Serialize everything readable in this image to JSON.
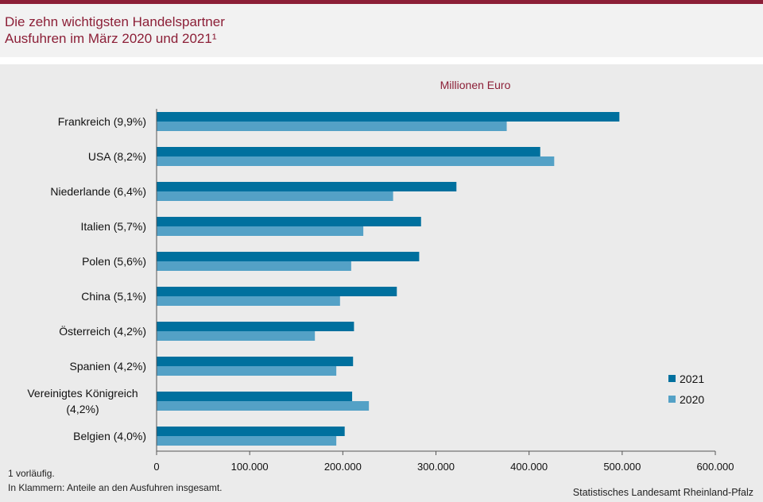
{
  "header": {
    "title_line1": "Die zehn wichtigsten Handelspartner",
    "title_line2": "Ausfuhren im März 2020 und 2021¹"
  },
  "colors": {
    "accent": "#8c1f37",
    "series_2021": "#00709e",
    "series_2020": "#54a1c6",
    "background": "#ebebeb"
  },
  "chart_data": {
    "type": "bar",
    "orientation": "horizontal",
    "unit_label": "Millionen Euro",
    "categories": [
      [
        "Frankreich (9,9%)"
      ],
      [
        "USA (8,2%)"
      ],
      [
        "Niederlande (6,4%)"
      ],
      [
        "Italien (5,7%)"
      ],
      [
        "Polen (5,6%)"
      ],
      [
        "China (5,1%)"
      ],
      [
        "Österreich (4,2%)"
      ],
      [
        "Spanien (4,2%)"
      ],
      [
        "Vereinigtes Königreich",
        "(4,2%)"
      ],
      [
        "Belgien (4,0%)"
      ]
    ],
    "series": [
      {
        "name": "2021",
        "values": [
          497000,
          412000,
          322000,
          284000,
          282000,
          258000,
          212000,
          211000,
          210000,
          202000
        ]
      },
      {
        "name": "2020",
        "values": [
          376000,
          427000,
          254000,
          222000,
          209000,
          197000,
          170000,
          193000,
          228000,
          193000
        ]
      }
    ],
    "xlim": [
      0,
      600000
    ],
    "x_ticks": [
      0,
      100000,
      200000,
      300000,
      400000,
      500000,
      600000
    ],
    "x_tick_labels": [
      "0",
      "100.000",
      "200.000",
      "300.000",
      "400.000",
      "500.000",
      "600.000"
    ],
    "grid": false,
    "legend_position": "bottom-right"
  },
  "footnotes": {
    "note1": "1 vorläufig.",
    "note2": "In Klammern: Anteile an den Ausfuhren insgesamt."
  },
  "source": "Statistisches Landesamt Rheinland-Pfalz"
}
